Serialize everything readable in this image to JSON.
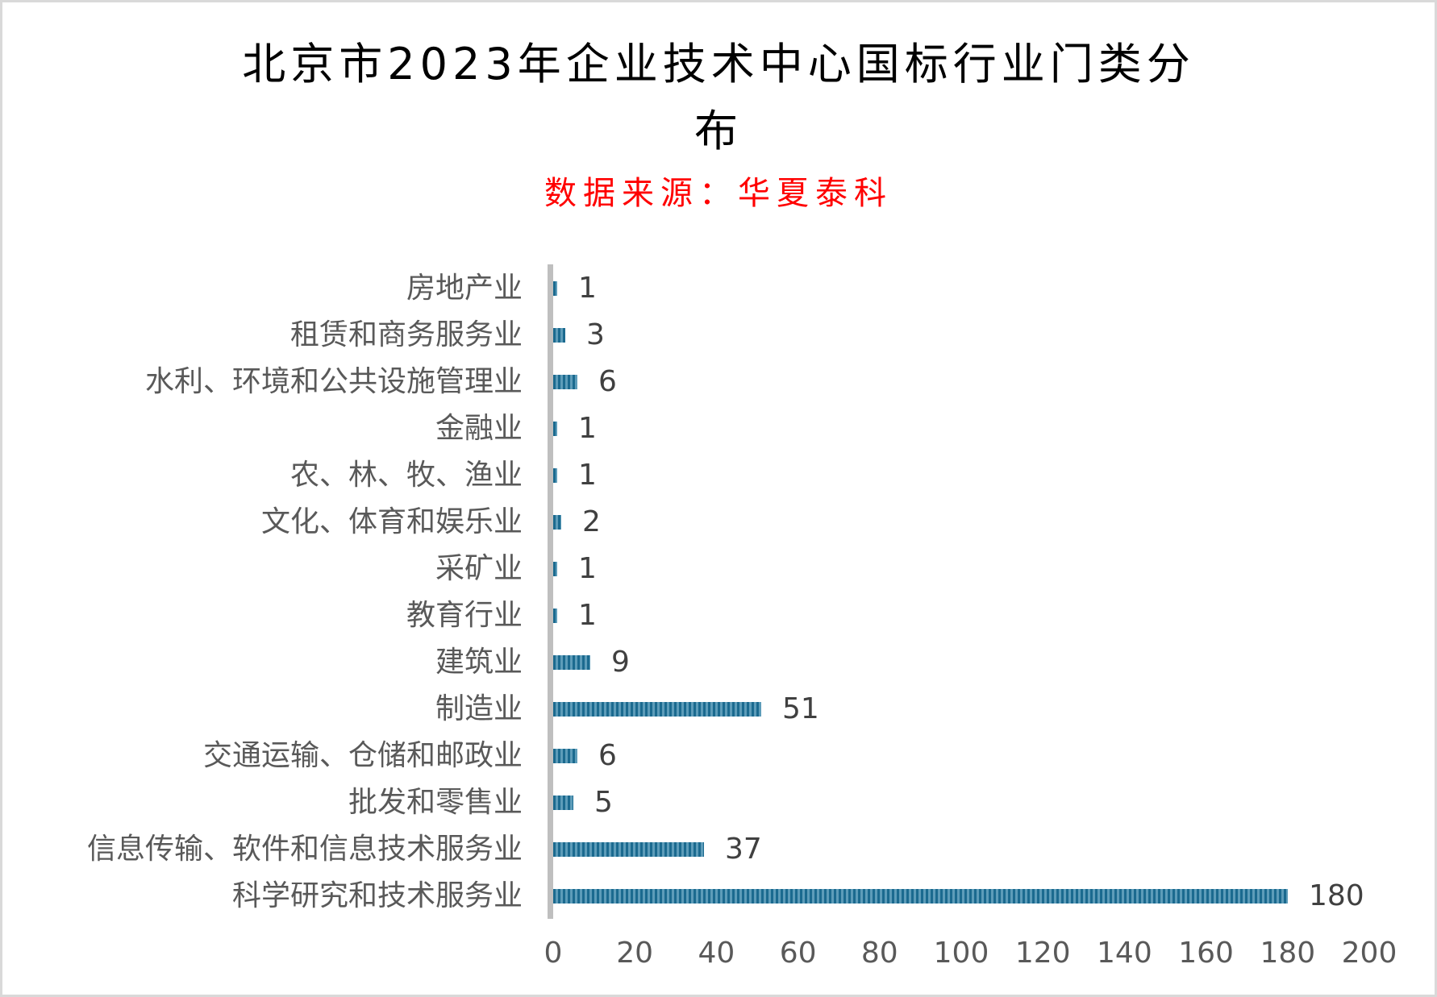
{
  "chart_data": {
    "type": "bar",
    "orientation": "horizontal",
    "title_line1": "北京市2023年企业技术中心国标行业门类分",
    "title_line2": "布",
    "title": "北京市2023年企业技术中心国标行业门类分布",
    "subtitle": "数据来源：华夏泰科",
    "categories": [
      "房地产业",
      "租赁和商务服务业",
      "水利、环境和公共设施管理业",
      "金融业",
      "农、林、牧、渔业",
      "文化、体育和娱乐业",
      "采矿业",
      "教育行业",
      "建筑业",
      "制造业",
      "交通运输、仓储和邮政业",
      "批发和零售业",
      "信息传输、软件和信息技术服务业",
      "科学研究和技术服务业"
    ],
    "values": [
      1,
      3,
      6,
      1,
      1,
      2,
      1,
      1,
      9,
      51,
      6,
      5,
      37,
      180
    ],
    "value_labels": [
      "1",
      "3",
      "6",
      "1",
      "1",
      "2",
      "1",
      "1",
      "9",
      "51",
      "6",
      "5",
      "37",
      "180"
    ],
    "xlabel": "",
    "ylabel": "",
    "xlim": [
      0,
      200
    ],
    "x_ticks": [
      "0",
      "20",
      "40",
      "60",
      "80",
      "100",
      "120",
      "140",
      "160",
      "180",
      "200"
    ],
    "grid": false,
    "legend": null,
    "colors": {
      "bar_dark": "#1b6a8f",
      "bar_light": "#5d9cb9",
      "title": "#000000",
      "subtitle": "#ff0000",
      "axis": "#bfbfbf",
      "label_text": "#595959",
      "value_text": "#404040"
    }
  }
}
